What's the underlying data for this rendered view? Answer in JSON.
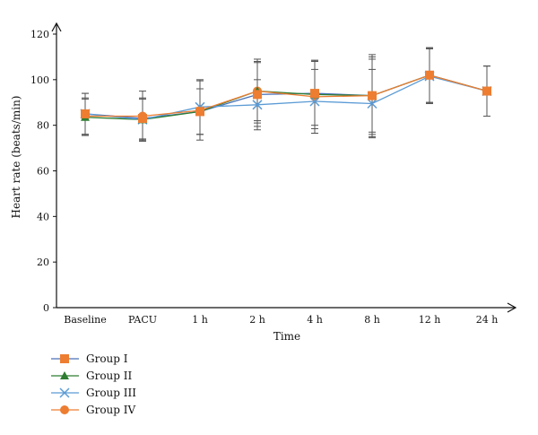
{
  "chart_data": {
    "type": "line",
    "xlabel": "Time",
    "ylabel": "Heart rate (beats/min)",
    "ylim": [
      0,
      120
    ],
    "yticks": [
      0,
      20,
      40,
      60,
      80,
      100,
      120
    ],
    "categories": [
      "Baseline",
      "PACU",
      "1 h",
      "2 h",
      "4 h",
      "8 h",
      "12 h",
      "24 h"
    ],
    "legend_position": "bottom-left",
    "grid": false,
    "series": [
      {
        "name": "Group I",
        "color": "#4a72b8",
        "marker": "square",
        "values": [
          85,
          83,
          86,
          93.5,
          94,
          93,
          102,
          95
        ],
        "error": [
          9,
          9,
          10,
          14,
          14,
          17,
          12,
          11
        ]
      },
      {
        "name": "Group II",
        "color": "#2e7d32",
        "marker": "triangle",
        "values": [
          83.5,
          82.5,
          86,
          95,
          93.5,
          93,
          102,
          95
        ],
        "error": [
          8,
          9,
          10,
          14,
          15,
          16,
          12,
          11
        ]
      },
      {
        "name": "Group III",
        "color": "#5b9bd5",
        "marker": "x",
        "values": [
          85,
          82.5,
          88,
          89,
          90.5,
          89.5,
          101.5,
          95
        ],
        "error": [
          9,
          9,
          12,
          11,
          14,
          15,
          12,
          11
        ]
      },
      {
        "name": "Group IV",
        "color": "#ed7d31",
        "marker": "circle",
        "values": [
          84,
          84,
          86.5,
          95,
          92.5,
          93,
          102,
          95
        ],
        "error": [
          8,
          11,
          13,
          13,
          16,
          18,
          12,
          11
        ]
      }
    ]
  }
}
